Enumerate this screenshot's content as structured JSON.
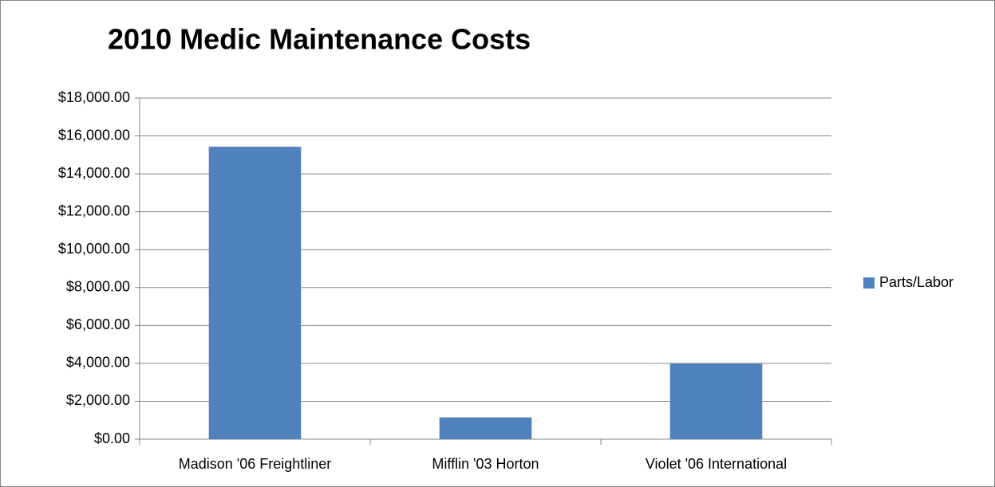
{
  "chart_data": {
    "type": "bar",
    "title": "2010 Medic Maintenance Costs",
    "categories": [
      "Madison '06 Freightliner",
      "Mifflin '03 Horton",
      "Violet '06 International"
    ],
    "series": [
      {
        "name": "Parts/Labor",
        "color": "#4f81bd",
        "values": [
          15430,
          1150,
          3980
        ]
      }
    ],
    "ylim": [
      0,
      18000
    ],
    "yticks": [
      {
        "value": 0,
        "label": "$0.00"
      },
      {
        "value": 2000,
        "label": "$2,000.00"
      },
      {
        "value": 4000,
        "label": "$4,000.00"
      },
      {
        "value": 6000,
        "label": "$6,000.00"
      },
      {
        "value": 8000,
        "label": "$8,000.00"
      },
      {
        "value": 10000,
        "label": "$10,000.00"
      },
      {
        "value": 12000,
        "label": "$12,000.00"
      },
      {
        "value": 14000,
        "label": "$14,000.00"
      },
      {
        "value": 16000,
        "label": "$16,000.00"
      },
      {
        "value": 18000,
        "label": "$18,000.00"
      }
    ],
    "grid": true,
    "legend": "right"
  }
}
